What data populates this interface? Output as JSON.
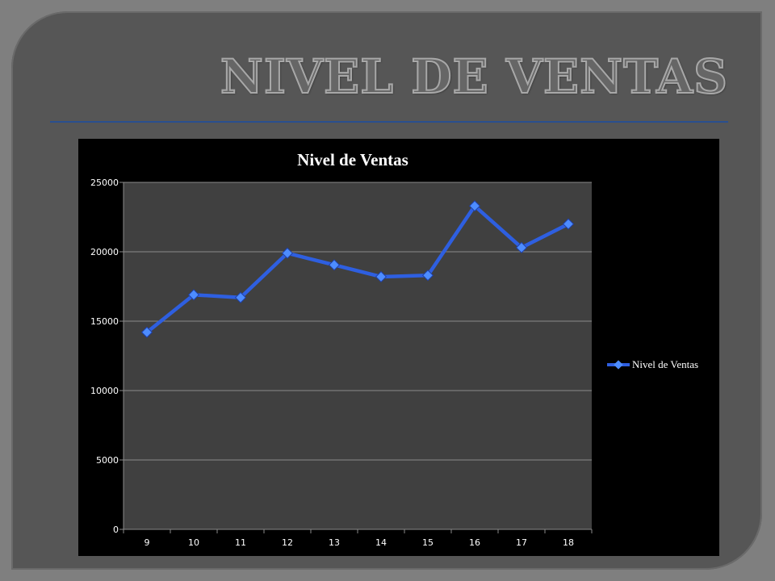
{
  "slide": {
    "title": "NIVEL DE VENTAS"
  },
  "chart_data": {
    "type": "line",
    "title": "Nivel de Ventas",
    "x": [
      "9",
      "10",
      "11",
      "12",
      "13",
      "14",
      "15",
      "16",
      "17",
      "18"
    ],
    "series": [
      {
        "name": "Nivel de Ventas",
        "values": [
          14200,
          16900,
          16700,
          19900,
          19050,
          18200,
          18300,
          23300,
          20300,
          22000
        ]
      }
    ],
    "ylim": [
      0,
      25000
    ],
    "yticks": [
      "0",
      "5000",
      "10000",
      "15000",
      "20000",
      "25000"
    ],
    "grid": true,
    "legend": "right",
    "colors": {
      "line": "#2e5fe0",
      "marker": "#4d8cff",
      "plot_bg": "#404040",
      "chart_bg": "#000000",
      "grid": "#8a8a8a"
    }
  }
}
